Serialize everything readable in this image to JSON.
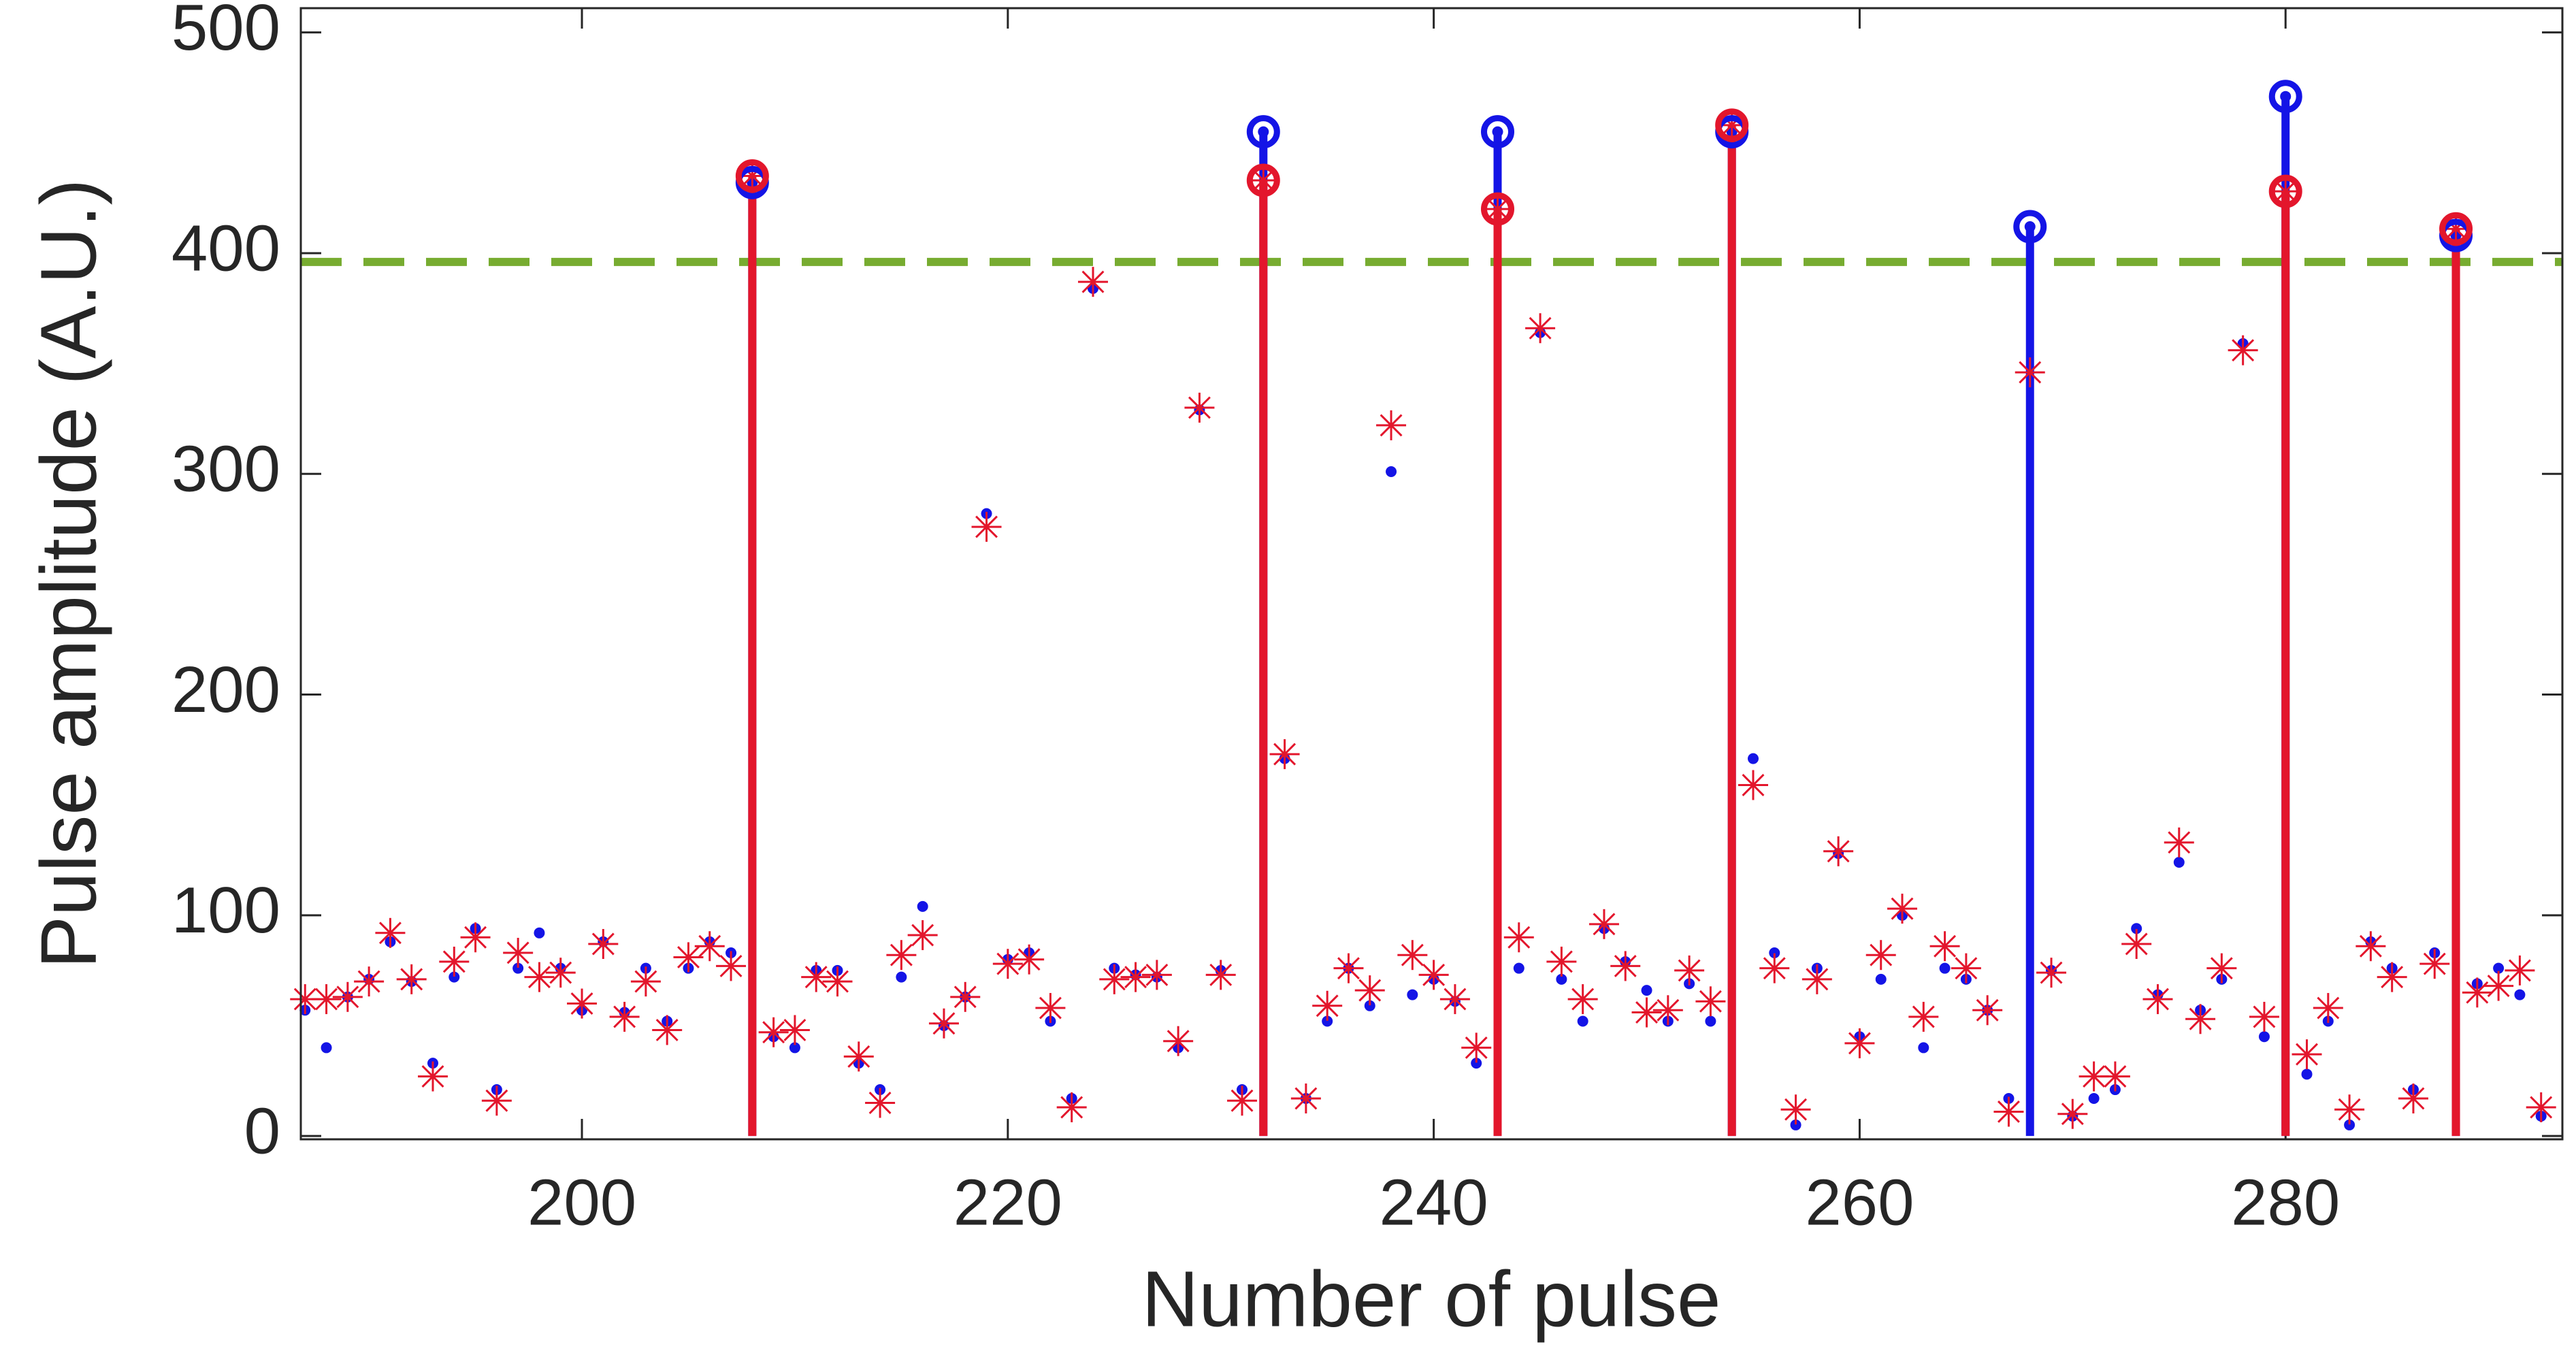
{
  "chart_data": {
    "type": "stem-scatter",
    "x_label": "Number of pulse",
    "y_label": "Pulse amplitude (A.U.)",
    "xlim": [
      186.8,
      293
    ],
    "xticks": [
      200,
      220,
      240,
      260,
      280
    ],
    "ylim": [
      -1.5,
      511
    ],
    "yticks": [
      0,
      100,
      200,
      300,
      400,
      500
    ],
    "threshold": 396,
    "threshold_color": "#77ac30",
    "x": [
      187,
      188,
      189,
      190,
      191,
      192,
      193,
      194,
      195,
      196,
      197,
      198,
      199,
      200,
      201,
      202,
      203,
      204,
      205,
      206,
      207,
      208,
      209,
      210,
      211,
      212,
      213,
      214,
      215,
      216,
      217,
      218,
      219,
      220,
      221,
      222,
      223,
      224,
      225,
      226,
      227,
      228,
      229,
      230,
      231,
      232,
      233,
      234,
      235,
      236,
      237,
      238,
      239,
      240,
      241,
      242,
      243,
      244,
      245,
      246,
      247,
      248,
      249,
      250,
      251,
      252,
      253,
      254,
      255,
      256,
      257,
      258,
      259,
      260,
      261,
      262,
      263,
      264,
      265,
      266,
      267,
      268,
      269,
      270,
      271,
      272,
      273,
      274,
      275,
      276,
      277,
      278,
      279,
      280,
      281,
      282,
      283,
      284,
      285,
      286,
      287,
      288,
      289,
      290,
      291,
      292
    ],
    "series": [
      {
        "color": "#1414e6",
        "marker": "dot",
        "stem_x": [
          208,
          232,
          243,
          254,
          268,
          280,
          288
        ],
        "values": [
          57,
          40,
          63,
          71,
          88,
          70,
          33,
          72,
          94,
          21,
          76,
          92,
          76,
          57,
          88,
          56,
          76,
          52,
          76,
          88,
          83,
          432,
          45,
          40,
          75,
          75,
          33,
          21,
          72,
          104,
          50,
          63,
          282,
          80,
          83,
          52,
          17,
          384,
          76,
          73,
          72,
          40,
          329,
          75,
          21,
          455,
          171,
          17,
          52,
          76,
          59,
          301,
          64,
          71,
          61,
          33,
          455,
          76,
          364,
          71,
          52,
          94,
          79,
          66,
          52,
          69,
          52,
          455,
          171,
          83,
          5,
          76,
          128,
          45,
          71,
          100,
          40,
          76,
          71,
          57,
          17,
          412,
          75,
          9,
          17,
          21,
          94,
          64,
          124,
          57,
          71,
          359,
          45,
          471,
          28,
          52,
          5,
          88,
          76,
          21,
          83,
          408,
          69,
          76,
          64,
          9
        ]
      },
      {
        "color": "#e3162c",
        "marker": "asterisk",
        "stem_x": [
          208,
          232,
          243,
          254,
          280,
          288
        ],
        "values": [
          62,
          62,
          63,
          70,
          92,
          71,
          27,
          79,
          90,
          16,
          83,
          72,
          74,
          60,
          87,
          54,
          70,
          48,
          81,
          86,
          77,
          435,
          47,
          48,
          72,
          70,
          36,
          15,
          82,
          91,
          51,
          63,
          276,
          78,
          80,
          58,
          13,
          387,
          71,
          72,
          73,
          43,
          330,
          73,
          16,
          433,
          173,
          17,
          59,
          76,
          66,
          322,
          82,
          73,
          62,
          40,
          420,
          90,
          366,
          79,
          62,
          96,
          77,
          56,
          57,
          75,
          61,
          458,
          159,
          76,
          12,
          71,
          129,
          42,
          82,
          103,
          54,
          86,
          76,
          57,
          11,
          346,
          74,
          10,
          27,
          27,
          87,
          62,
          133,
          53,
          76,
          356,
          54,
          428,
          37,
          58,
          12,
          86,
          72,
          17,
          78,
          411,
          65,
          68,
          75,
          13
        ]
      }
    ]
  }
}
